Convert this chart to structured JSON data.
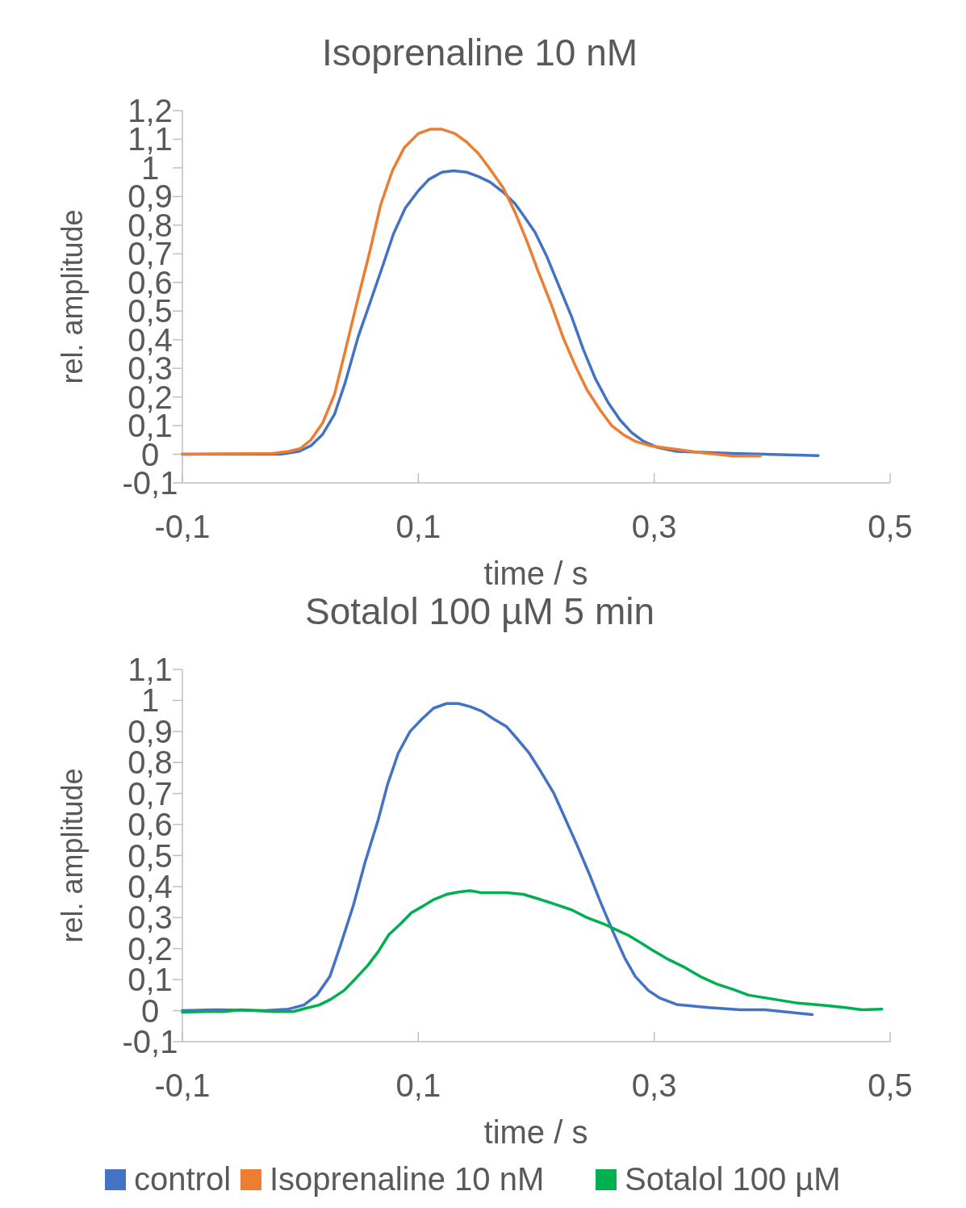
{
  "chart_data": [
    {
      "type": "line",
      "title": "Isoprenaline 10 nM",
      "xlabel": "time / s",
      "ylabel": "rel. amplitude",
      "xlim": [
        -0.1,
        0.5
      ],
      "xticks": [
        {
          "value": -0.1,
          "label": "-0,1"
        },
        {
          "value": 0.1,
          "label": "0,1"
        },
        {
          "value": 0.3,
          "label": "0,3"
        },
        {
          "value": 0.5,
          "label": "0,5"
        }
      ],
      "ylim": [
        -0.1,
        1.2
      ],
      "yticks": [
        {
          "value": -0.1,
          "label": "-0,1"
        },
        {
          "value": 0,
          "label": "0"
        },
        {
          "value": 0.1,
          "label": "0,1"
        },
        {
          "value": 0.2,
          "label": "0,2"
        },
        {
          "value": 0.3,
          "label": "0,3"
        },
        {
          "value": 0.4,
          "label": "0,4"
        },
        {
          "value": 0.5,
          "label": "0,5"
        },
        {
          "value": 0.6,
          "label": "0,6"
        },
        {
          "value": 0.7,
          "label": "0,7"
        },
        {
          "value": 0.8,
          "label": "0,8"
        },
        {
          "value": 0.9,
          "label": "0,9"
        },
        {
          "value": 1,
          "label": "1"
        },
        {
          "value": 1.1,
          "label": "1,1"
        },
        {
          "value": 1.2,
          "label": "1,2"
        }
      ],
      "grid": false,
      "legend": "bottom",
      "marker": "none",
      "line_style": "solid",
      "series": [
        {
          "name": "control",
          "color": "#4472c4",
          "x": [
            -0.1,
            -0.044,
            -0.017,
            -0.001,
            0.009,
            0.019,
            0.029,
            0.038,
            0.049,
            0.06,
            0.07,
            0.079,
            0.089,
            0.1,
            0.109,
            0.12,
            0.13,
            0.141,
            0.151,
            0.161,
            0.172,
            0.182,
            0.189,
            0.199,
            0.209,
            0.219,
            0.23,
            0.24,
            0.25,
            0.261,
            0.271,
            0.281,
            0.291,
            0.302,
            0.319,
            0.367,
            0.439
          ],
          "values": [
            0,
            0,
            0,
            0.01,
            0.03,
            0.07,
            0.14,
            0.25,
            0.41,
            0.54,
            0.66,
            0.77,
            0.86,
            0.92,
            0.96,
            0.985,
            0.99,
            0.985,
            0.97,
            0.95,
            0.915,
            0.875,
            0.835,
            0.775,
            0.69,
            0.59,
            0.48,
            0.365,
            0.265,
            0.18,
            0.12,
            0.075,
            0.045,
            0.025,
            0.01,
            0.003,
            -0.005
          ]
        },
        {
          "name": "Isoprenaline 10 nM",
          "color": "#ed7d31",
          "x": [
            -0.1,
            -0.023,
            -0.01,
            0,
            0.009,
            0.019,
            0.029,
            0.038,
            0.048,
            0.059,
            0.068,
            0.078,
            0.088,
            0.1,
            0.11,
            0.12,
            0.131,
            0.141,
            0.151,
            0.161,
            0.172,
            0.182,
            0.192,
            0.202,
            0.213,
            0.223,
            0.233,
            0.243,
            0.254,
            0.264,
            0.274,
            0.284,
            0.298,
            0.319,
            0.339,
            0.367,
            0.39
          ],
          "values": [
            0,
            0.003,
            0.01,
            0.02,
            0.05,
            0.11,
            0.21,
            0.36,
            0.53,
            0.71,
            0.87,
            0.99,
            1.07,
            1.12,
            1.135,
            1.135,
            1.12,
            1.09,
            1.05,
            0.995,
            0.93,
            0.845,
            0.745,
            0.635,
            0.52,
            0.405,
            0.31,
            0.225,
            0.155,
            0.1,
            0.068,
            0.045,
            0.028,
            0.017,
            0.006,
            -0.006,
            -0.006
          ]
        }
      ]
    },
    {
      "type": "line",
      "title": "Sotalol 100 µM 5 min",
      "xlabel": "time / s",
      "ylabel": "rel. amplitude",
      "xlim": [
        -0.1,
        0.5
      ],
      "xticks": [
        {
          "value": -0.1,
          "label": "-0,1"
        },
        {
          "value": 0.1,
          "label": "0,1"
        },
        {
          "value": 0.3,
          "label": "0,3"
        },
        {
          "value": 0.5,
          "label": "0,5"
        }
      ],
      "ylim": [
        -0.1,
        1.1
      ],
      "yticks": [
        {
          "value": -0.1,
          "label": "-0,1"
        },
        {
          "value": 0,
          "label": "0"
        },
        {
          "value": 0.1,
          "label": "0,1"
        },
        {
          "value": 0.2,
          "label": "0,2"
        },
        {
          "value": 0.3,
          "label": "0,3"
        },
        {
          "value": 0.4,
          "label": "0,4"
        },
        {
          "value": 0.5,
          "label": "0,5"
        },
        {
          "value": 0.6,
          "label": "0,6"
        },
        {
          "value": 0.7,
          "label": "0,7"
        },
        {
          "value": 0.8,
          "label": "0,8"
        },
        {
          "value": 0.9,
          "label": "0,9"
        },
        {
          "value": 1,
          "label": "1"
        },
        {
          "value": 1.1,
          "label": "1,1"
        }
      ],
      "grid": false,
      "legend": "bottom",
      "marker": "none",
      "line_style": "solid",
      "series": [
        {
          "name": "control",
          "color": "#4472c4",
          "x": [
            -0.1,
            -0.071,
            -0.03,
            -0.01,
            0.003,
            0.014,
            0.025,
            0.034,
            0.045,
            0.055,
            0.066,
            0.074,
            0.083,
            0.093,
            0.103,
            0.113,
            0.124,
            0.134,
            0.144,
            0.154,
            0.164,
            0.175,
            0.183,
            0.194,
            0.204,
            0.215,
            0.225,
            0.235,
            0.245,
            0.255,
            0.265,
            0.275,
            0.284,
            0.295,
            0.305,
            0.319,
            0.346,
            0.373,
            0.394,
            0.434
          ],
          "values": [
            0,
            0.003,
            0,
            0.005,
            0.018,
            0.05,
            0.11,
            0.21,
            0.34,
            0.48,
            0.615,
            0.73,
            0.83,
            0.9,
            0.94,
            0.975,
            0.99,
            0.99,
            0.98,
            0.965,
            0.94,
            0.915,
            0.88,
            0.83,
            0.77,
            0.7,
            0.615,
            0.53,
            0.44,
            0.345,
            0.255,
            0.17,
            0.11,
            0.065,
            0.04,
            0.02,
            0.01,
            0.003,
            0.003,
            -0.013
          ]
        },
        {
          "name": "Sotalol 100 µM",
          "color": "#00b050",
          "x": [
            -0.1,
            -0.078,
            -0.064,
            -0.051,
            -0.023,
            -0.006,
            0.005,
            0.016,
            0.026,
            0.037,
            0.046,
            0.057,
            0.066,
            0.075,
            0.085,
            0.094,
            0.104,
            0.113,
            0.124,
            0.134,
            0.144,
            0.154,
            0.175,
            0.189,
            0.202,
            0.216,
            0.23,
            0.243,
            0.257,
            0.267,
            0.278,
            0.288,
            0.298,
            0.312,
            0.326,
            0.339,
            0.353,
            0.367,
            0.38,
            0.401,
            0.422,
            0.442,
            0.462,
            0.476,
            0.493
          ],
          "values": [
            -0.005,
            -0.003,
            -0.003,
            0.003,
            -0.003,
            -0.003,
            0.008,
            0.018,
            0.037,
            0.065,
            0.1,
            0.145,
            0.19,
            0.245,
            0.28,
            0.315,
            0.337,
            0.358,
            0.375,
            0.382,
            0.387,
            0.38,
            0.38,
            0.375,
            0.36,
            0.343,
            0.325,
            0.3,
            0.28,
            0.262,
            0.243,
            0.22,
            0.196,
            0.165,
            0.139,
            0.11,
            0.086,
            0.068,
            0.05,
            0.037,
            0.024,
            0.018,
            0.01,
            0.003,
            0.005
          ]
        }
      ]
    }
  ]
}
